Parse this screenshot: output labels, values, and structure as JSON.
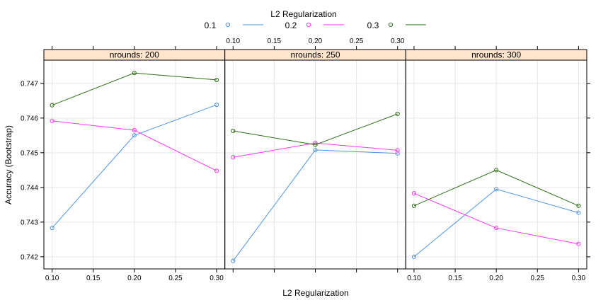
{
  "chart_data": {
    "type": "line",
    "legend": {
      "title": "L2 Regularization",
      "placement": "top",
      "entries": [
        {
          "label": "0.1",
          "color": "#4D94E6"
        },
        {
          "label": "0.2",
          "color": "#FF33FF"
        },
        {
          "label": "0.3",
          "color": "#2E6E14"
        }
      ]
    },
    "xlabel": "L2 Regularization",
    "ylabel": "Accuracy (Bootstrap)",
    "x": [
      0.1,
      0.2,
      0.3
    ],
    "x_ticks": [
      0.1,
      0.15,
      0.2,
      0.25,
      0.3
    ],
    "x_tick_labels": [
      "0.10",
      "0.15",
      "0.20",
      "0.25",
      "0.30"
    ],
    "xlim": [
      0.09,
      0.31
    ],
    "ylim": [
      0.74165,
      0.74767
    ],
    "y_ticks": [
      0.742,
      0.743,
      0.744,
      0.745,
      0.746,
      0.747
    ],
    "y_tick_labels": [
      "0.742",
      "0.743",
      "0.744",
      "0.745",
      "0.746",
      "0.747"
    ],
    "grid": true,
    "strip_color": "#FFE5CC",
    "panels": [
      {
        "label": "nrounds: 200",
        "series": [
          {
            "name": "0.1",
            "values": [
              0.74283,
              0.7455,
              0.74638
            ]
          },
          {
            "name": "0.2",
            "values": [
              0.74592,
              0.74565,
              0.74448
            ]
          },
          {
            "name": "0.3",
            "values": [
              0.74637,
              0.7473,
              0.7471
            ]
          }
        ]
      },
      {
        "label": "nrounds: 250",
        "series": [
          {
            "name": "0.1",
            "values": [
              0.74188,
              0.74508,
              0.74498
            ]
          },
          {
            "name": "0.2",
            "values": [
              0.74487,
              0.74528,
              0.74507
            ]
          },
          {
            "name": "0.3",
            "values": [
              0.74563,
              0.74523,
              0.74612
            ]
          }
        ]
      },
      {
        "label": "nrounds: 300",
        "series": [
          {
            "name": "0.1",
            "values": [
              0.742,
              0.74395,
              0.74327
            ]
          },
          {
            "name": "0.2",
            "values": [
              0.74383,
              0.74283,
              0.74237
            ]
          },
          {
            "name": "0.3",
            "values": [
              0.74347,
              0.7445,
              0.74347
            ]
          }
        ]
      }
    ]
  }
}
